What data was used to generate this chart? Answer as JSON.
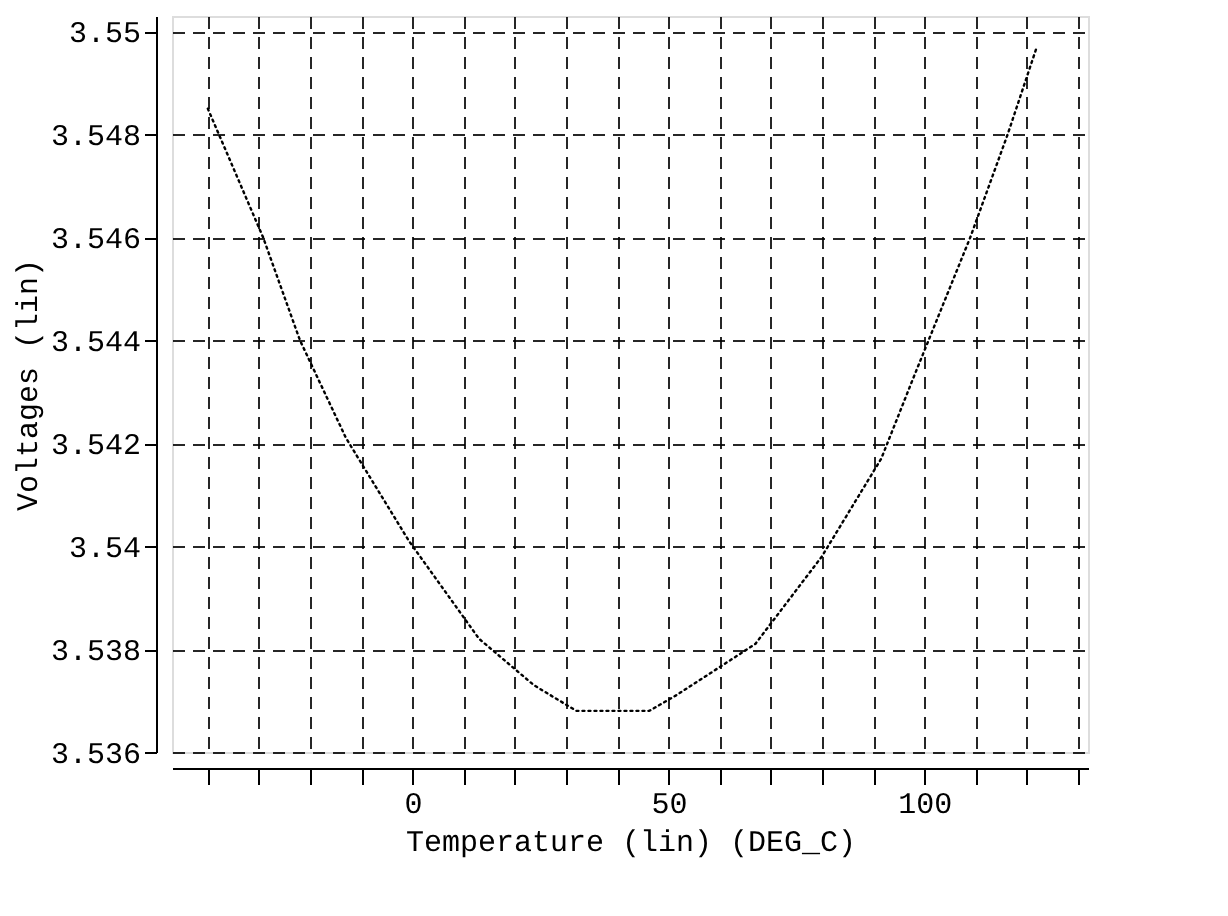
{
  "chart_data": {
    "type": "line",
    "xlabel": "Temperature (lin) (DEG_C)",
    "ylabel": "Voltages (lin)",
    "x": [
      -40,
      -29.2,
      -22,
      -13,
      -0.7,
      13,
      23.7,
      32,
      46.3,
      51.5,
      67,
      80,
      91.6,
      98,
      109,
      116.3,
      122
    ],
    "series": [
      {
        "color": "#000000",
        "line_style": "dotted",
        "values": [
          3.5485,
          3.546,
          3.544,
          3.5421,
          3.5401,
          3.5382,
          3.5373,
          3.5368,
          3.5368,
          3.5371,
          3.5381,
          3.5398,
          3.5417,
          3.5433,
          3.546,
          3.548,
          3.5497
        ]
      }
    ],
    "xlim": [
      -47,
      132
    ],
    "xticks": [
      {
        "value": -40,
        "label": null
      },
      {
        "value": -30,
        "label": null
      },
      {
        "value": -20,
        "label": null
      },
      {
        "value": -10,
        "label": null
      },
      0,
      {
        "value": 10,
        "label": null
      },
      {
        "value": 20,
        "label": null
      },
      {
        "value": 30,
        "label": null
      },
      {
        "value": 40,
        "label": null
      },
      50,
      {
        "value": 60,
        "label": null
      },
      {
        "value": 70,
        "label": null
      },
      {
        "value": 80,
        "label": null
      },
      {
        "value": 90,
        "label": null
      },
      100,
      {
        "value": 110,
        "label": null
      },
      {
        "value": 120,
        "label": null
      },
      {
        "value": 130,
        "label": null
      }
    ],
    "ylim": [
      3.536,
      3.5503
    ],
    "yticks": [
      3.536,
      3.538,
      3.54,
      3.542,
      3.544,
      3.546,
      3.548,
      3.55
    ],
    "grid": true,
    "marker": "none"
  }
}
